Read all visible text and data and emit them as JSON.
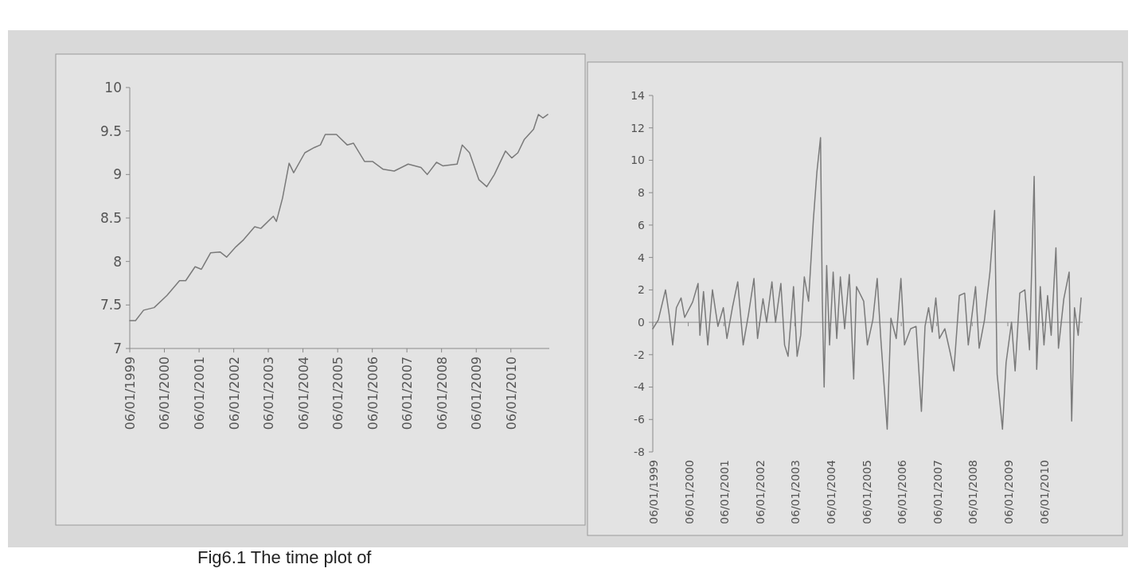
{
  "chart_data": [
    {
      "type": "line",
      "annotations": [
        "Fig6.1 The time plot of"
      ],
      "x": [
        "1999-01-06",
        "1999-03-08",
        "1999-06-01",
        "1999-09-20",
        "2000-02-03",
        "2000-06-14",
        "2000-08-18",
        "2000-11-25",
        "2001-01-30",
        "2001-05-08",
        "2001-08-15",
        "2001-10-23",
        "2002-01-30",
        "2002-04-20",
        "2002-08-15",
        "2002-10-19",
        "2003-02-28",
        "2003-04-01",
        "2003-06-05",
        "2003-08-13",
        "2003-09-30",
        "2004-01-26",
        "2004-05-04",
        "2004-07-08",
        "2004-08-28",
        "2004-12-24",
        "2005-04-16",
        "2005-06-21",
        "2005-10-16",
        "2006-01-08",
        "2006-05-01",
        "2006-08-25",
        "2007-01-19",
        "2007-06-03",
        "2007-08-08",
        "2007-11-14",
        "2008-01-19",
        "2008-06-18",
        "2008-08-11",
        "2008-10-27",
        "2009-02-03",
        "2009-04-27",
        "2009-07-16",
        "2009-11-10",
        "2010-01-15",
        "2010-03-21",
        "2010-05-26",
        "2010-09-02",
        "2010-10-23",
        "2010-12-09",
        "2011-01-30"
      ],
      "series": [
        {
          "color": "#7a7a7a",
          "values": [
            7.32,
            7.32,
            7.44,
            7.47,
            7.61,
            7.78,
            7.78,
            7.94,
            7.91,
            8.1,
            8.11,
            8.05,
            8.17,
            8.25,
            8.4,
            8.38,
            8.52,
            8.46,
            8.73,
            9.13,
            9.02,
            9.25,
            9.31,
            9.34,
            9.46,
            9.46,
            9.34,
            9.36,
            9.15,
            9.15,
            9.06,
            9.04,
            9.12,
            9.08,
            9.0,
            9.14,
            9.1,
            9.12,
            9.34,
            9.25,
            8.94,
            8.86,
            9.0,
            9.27,
            9.19,
            9.25,
            9.4,
            9.52,
            9.69,
            9.65,
            9.69
          ]
        }
      ],
      "xlim": [
        "1999-01-06",
        "2011-02-15"
      ],
      "xticks": [
        {
          "value": "1999-01-06",
          "label": "06/01/1999"
        },
        {
          "value": "2000-01-06",
          "label": "06/01/2000"
        },
        {
          "value": "2001-01-06",
          "label": "06/01/2001"
        },
        {
          "value": "2002-01-06",
          "label": "06/01/2002"
        },
        {
          "value": "2003-01-06",
          "label": "06/01/2003"
        },
        {
          "value": "2004-01-06",
          "label": "06/01/2004"
        },
        {
          "value": "2005-01-06",
          "label": "06/01/2005"
        },
        {
          "value": "2006-01-06",
          "label": "06/01/2006"
        },
        {
          "value": "2007-01-06",
          "label": "06/01/2007"
        },
        {
          "value": "2008-01-06",
          "label": "06/01/2008"
        },
        {
          "value": "2009-01-06",
          "label": "06/01/2009"
        },
        {
          "value": "2010-01-06",
          "label": "06/01/2010"
        }
      ],
      "ylim": [
        7,
        10
      ],
      "yticks": [
        7,
        7.5,
        8,
        8.5,
        9,
        9.5,
        10
      ]
    },
    {
      "type": "line",
      "x": [
        "1999-01-06",
        "1999-03-04",
        "1999-05-17",
        "1999-06-23",
        "1999-07-30",
        "1999-09-06",
        "1999-10-24",
        "1999-11-30",
        "2000-02-20",
        "2000-04-16",
        "2000-05-05",
        "2000-06-11",
        "2000-07-25",
        "2000-09-11",
        "2000-11-06",
        "2001-01-01",
        "2001-02-07",
        "2001-04-04",
        "2001-05-29",
        "2001-07-24",
        "2001-09-17",
        "2001-11-12",
        "2001-12-19",
        "2002-02-13",
        "2002-03-22",
        "2002-05-16",
        "2002-06-22",
        "2002-08-16",
        "2002-09-23",
        "2002-10-29",
        "2002-12-24",
        "2003-01-30",
        "2003-03-08",
        "2003-04-14",
        "2003-05-28",
        "2003-07-16",
        "2003-08-22",
        "2003-09-28",
        "2003-10-16",
        "2003-11-04",
        "2003-11-30",
        "2003-12-30",
        "2004-02-05",
        "2004-03-13",
        "2004-04-19",
        "2004-06-02",
        "2004-07-20",
        "2004-09-03",
        "2004-10-02",
        "2004-12-15",
        "2005-01-22",
        "2005-03-19",
        "2005-05-03",
        "2005-06-09",
        "2005-08-14",
        "2005-09-21",
        "2005-11-15",
        "2006-01-02",
        "2006-02-08",
        "2006-04-12",
        "2006-06-07",
        "2006-08-01",
        "2006-09-07",
        "2006-10-14",
        "2006-11-20",
        "2006-12-27",
        "2007-02-02",
        "2007-03-30",
        "2007-05-25",
        "2007-07-01",
        "2007-08-26",
        "2007-10-20",
        "2007-11-26",
        "2008-02-09",
        "2008-03-17",
        "2008-05-11",
        "2008-07-06",
        "2008-08-23",
        "2008-09-18",
        "2008-11-12",
        "2008-12-19",
        "2009-02-13",
        "2009-03-22",
        "2009-05-09",
        "2009-06-30",
        "2009-08-17",
        "2009-10-04",
        "2009-10-30",
        "2009-12-06",
        "2010-01-13",
        "2010-02-19",
        "2010-03-28",
        "2010-05-16",
        "2010-06-11",
        "2010-08-05",
        "2010-09-29",
        "2010-10-25",
        "2010-11-23",
        "2010-12-31",
        "2011-01-30"
      ],
      "series": [
        {
          "color": "#7a7a7a",
          "values": [
            -0.4,
            0.15,
            2.0,
            0.5,
            -1.4,
            0.9,
            1.5,
            0.3,
            1.25,
            2.4,
            -0.8,
            1.9,
            -1.4,
            2.0,
            -0.25,
            0.9,
            -1.0,
            0.9,
            2.5,
            -1.4,
            0.5,
            2.7,
            -1.0,
            1.45,
            0,
            2.5,
            0,
            2.4,
            -1.4,
            -2.1,
            2.2,
            -2.1,
            -0.8,
            2.8,
            1.3,
            6.3,
            9.3,
            11.4,
            1.45,
            -4.0,
            3.5,
            -1.4,
            3.1,
            -1.0,
            2.8,
            -0.4,
            2.95,
            -3.5,
            2.2,
            1.3,
            -1.4,
            0.15,
            2.7,
            -1.0,
            -6.6,
            0.25,
            -1.0,
            2.7,
            -1.4,
            -0.4,
            -0.25,
            -5.5,
            -0.25,
            0.9,
            -0.6,
            1.5,
            -1.0,
            -0.4,
            -1.9,
            -3.0,
            1.65,
            1.8,
            -1.4,
            2.2,
            -1.6,
            0.15,
            3.1,
            6.9,
            -3.2,
            -6.6,
            -2.5,
            0,
            -3.0,
            1.8,
            2.0,
            -1.7,
            9.0,
            -2.9,
            2.2,
            -1.4,
            1.65,
            -0.8,
            4.6,
            -1.6,
            1.45,
            3.1,
            -6.1,
            0.9,
            -0.8,
            1.5
          ]
        }
      ],
      "xlim": [
        "1999-01-06",
        "2011-02-15"
      ],
      "xticks": [
        {
          "value": "1999-01-06",
          "label": "06/01/1999"
        },
        {
          "value": "2000-01-06",
          "label": "06/01/2000"
        },
        {
          "value": "2001-01-06",
          "label": "06/01/2001"
        },
        {
          "value": "2002-01-06",
          "label": "06/01/2002"
        },
        {
          "value": "2003-01-06",
          "label": "06/01/2003"
        },
        {
          "value": "2004-01-06",
          "label": "06/01/2004"
        },
        {
          "value": "2005-01-06",
          "label": "06/01/2005"
        },
        {
          "value": "2006-01-06",
          "label": "06/01/2006"
        },
        {
          "value": "2007-01-06",
          "label": "06/01/2007"
        },
        {
          "value": "2008-01-06",
          "label": "06/01/2008"
        },
        {
          "value": "2009-01-06",
          "label": "06/01/2009"
        },
        {
          "value": "2010-01-06",
          "label": "06/01/2010"
        }
      ],
      "ylim": [
        -8,
        14
      ],
      "yticks": [
        -8,
        -6,
        -4,
        -2,
        0,
        2,
        4,
        6,
        8,
        10,
        12,
        14
      ]
    }
  ]
}
